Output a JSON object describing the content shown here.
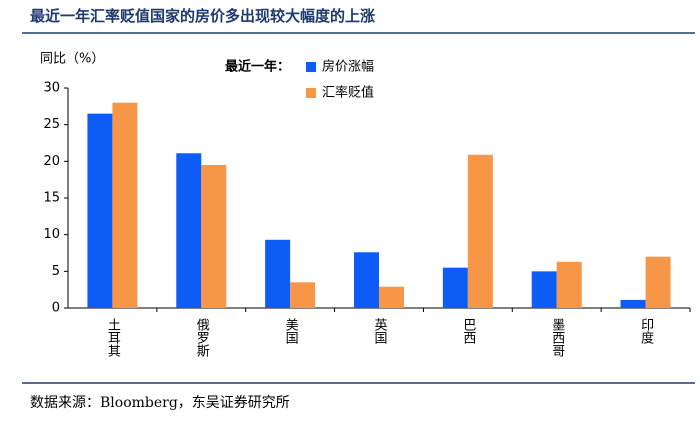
{
  "chart_data": {
    "type": "bar",
    "title": "最近一年汇率贬值国家的房价多出现较大幅度的上涨",
    "y_label": "同比（%）",
    "legend_title": "最近一年：",
    "source": "数据来源：Bloomberg，东吴证券研究所",
    "categories": [
      "土耳其",
      "俄罗斯",
      "美国",
      "英国",
      "巴西",
      "墨西哥",
      "印度"
    ],
    "series": [
      {
        "name": "房价涨幅",
        "color": "#0d5cf5",
        "values": [
          26.5,
          21.1,
          9.3,
          7.6,
          5.5,
          5.0,
          1.1
        ]
      },
      {
        "name": "汇率贬值",
        "color": "#f79646",
        "values": [
          28.0,
          19.5,
          3.5,
          2.9,
          20.9,
          6.3,
          7.0
        ]
      }
    ],
    "ylim": [
      0,
      30
    ],
    "yticks": [
      0,
      5,
      10,
      15,
      20,
      25,
      30
    ],
    "grid": false
  }
}
